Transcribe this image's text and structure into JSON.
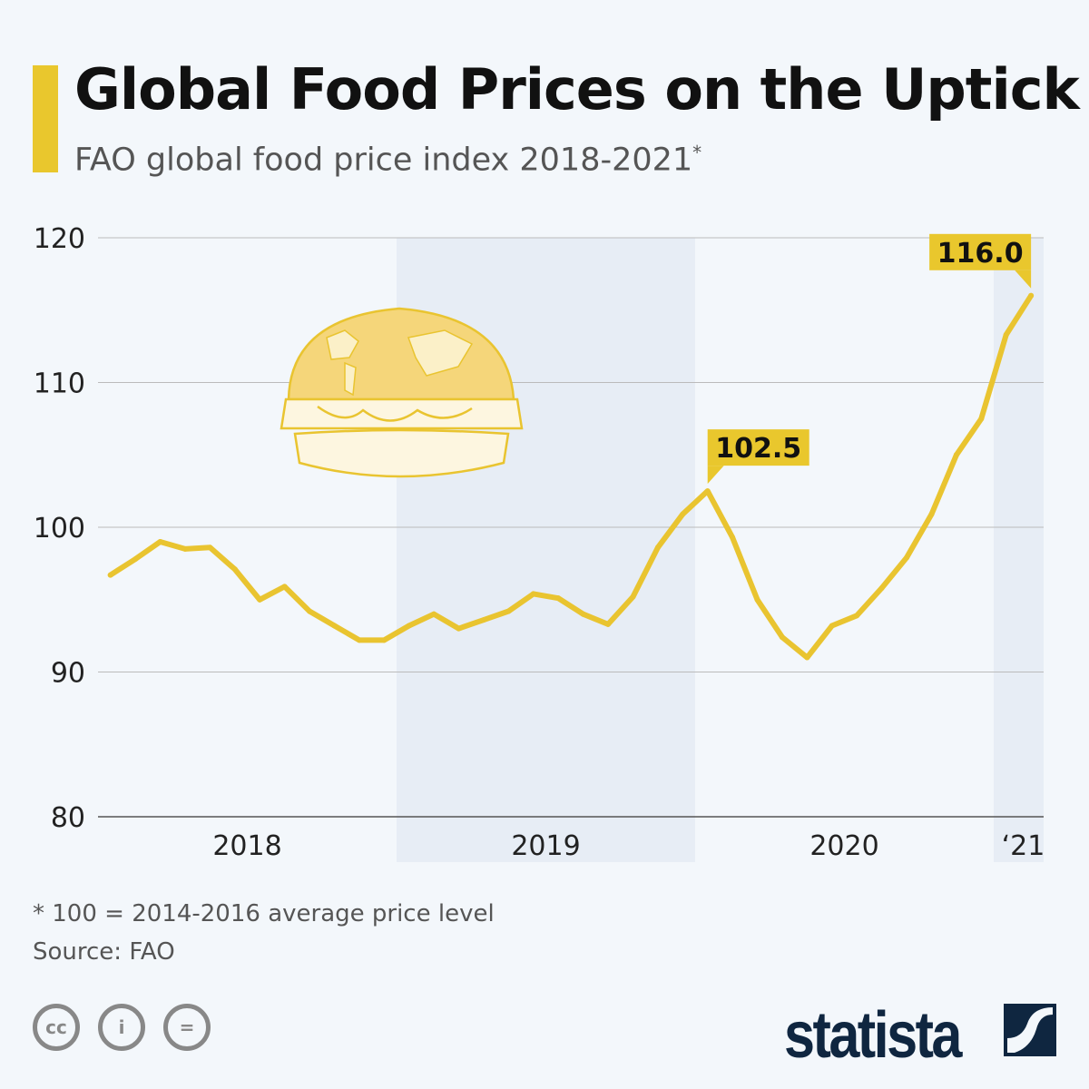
{
  "title": "Global Food Prices on the Uptick",
  "subtitle": "FAO global food price index 2018-2021",
  "subtitle_marker": "*",
  "footnote": "* 100 = 2014-2016 average price level",
  "source": "Source: FAO",
  "brand": "statista",
  "license_icons": [
    "cc-icon",
    "attribution-icon",
    "no-derivatives-icon"
  ],
  "colors": {
    "line": "#e9c430",
    "label_bg": "#e9c72d",
    "band": "#e7edf5",
    "background": "#f3f7fb"
  },
  "chart_data": {
    "type": "line",
    "title": "FAO global food price index 2018-2021",
    "xlabel": "",
    "ylabel": "",
    "ylim": [
      80,
      120
    ],
    "yticks": [
      "80",
      "90",
      "100",
      "110",
      "120"
    ],
    "year_labels": [
      "2018",
      "2019",
      "2020",
      "‘21"
    ],
    "grid": true,
    "x": [
      "2018-01",
      "2018-02",
      "2018-03",
      "2018-04",
      "2018-05",
      "2018-06",
      "2018-07",
      "2018-08",
      "2018-09",
      "2018-10",
      "2018-11",
      "2018-12",
      "2019-01",
      "2019-02",
      "2019-03",
      "2019-04",
      "2019-05",
      "2019-06",
      "2019-07",
      "2019-08",
      "2019-09",
      "2019-10",
      "2019-11",
      "2019-12",
      "2020-01",
      "2020-02",
      "2020-03",
      "2020-04",
      "2020-05",
      "2020-06",
      "2020-07",
      "2020-08",
      "2020-09",
      "2020-10",
      "2020-11",
      "2020-12",
      "2021-01",
      "2021-02"
    ],
    "values": [
      96.7,
      97.8,
      99.0,
      98.5,
      98.6,
      97.1,
      95.0,
      95.9,
      94.2,
      93.2,
      92.2,
      92.2,
      93.2,
      94.0,
      93.0,
      93.6,
      94.2,
      95.4,
      95.1,
      94.0,
      93.3,
      95.2,
      98.6,
      100.9,
      102.5,
      99.3,
      95.0,
      92.4,
      91.0,
      93.2,
      93.9,
      95.8,
      97.9,
      100.9,
      105.0,
      107.5,
      113.3,
      116.0
    ],
    "annotations": [
      {
        "x": "2020-01",
        "label": "102.5"
      },
      {
        "x": "2021-02",
        "label": "116.0"
      }
    ]
  }
}
